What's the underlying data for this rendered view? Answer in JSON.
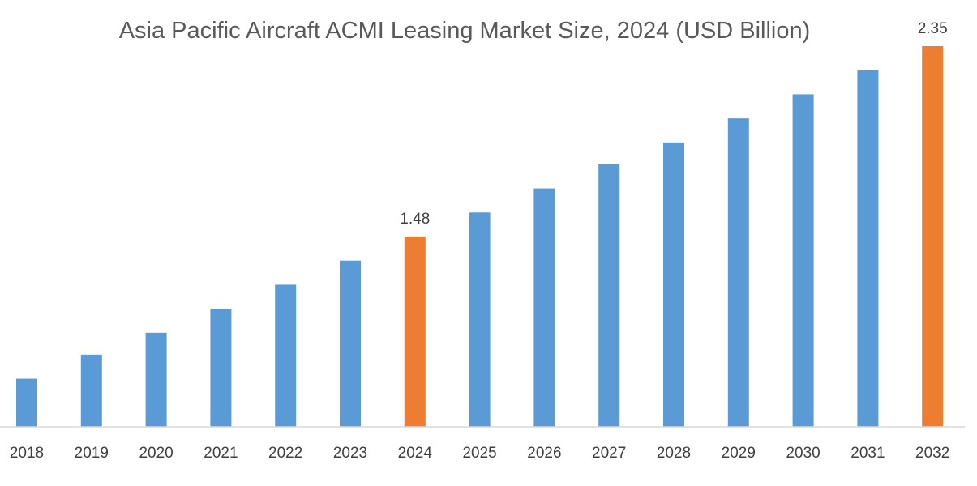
{
  "chart_data": {
    "type": "bar",
    "title": "Asia Pacific Aircraft ACMI Leasing Market Size, 2024 (USD Billion)",
    "xlabel": "",
    "ylabel": "",
    "categories": [
      "2018",
      "2019",
      "2020",
      "2021",
      "2022",
      "2023",
      "2024",
      "2025",
      "2026",
      "2027",
      "2028",
      "2029",
      "2030",
      "2031",
      "2032"
    ],
    "values": [
      0.83,
      0.94,
      1.04,
      1.15,
      1.26,
      1.37,
      1.48,
      1.59,
      1.7,
      1.81,
      1.91,
      2.02,
      2.13,
      2.24,
      2.35
    ],
    "data_labels": {
      "2024": "1.48",
      "2032": "2.35"
    },
    "highlight": [
      "2024",
      "2032"
    ],
    "ylim": [
      0.61,
      2.35
    ],
    "grid": false,
    "legend": "none",
    "colors": {
      "default": "#5B9BD5",
      "highlight": "#ED7D31",
      "axis": "#D9D9D9"
    }
  }
}
